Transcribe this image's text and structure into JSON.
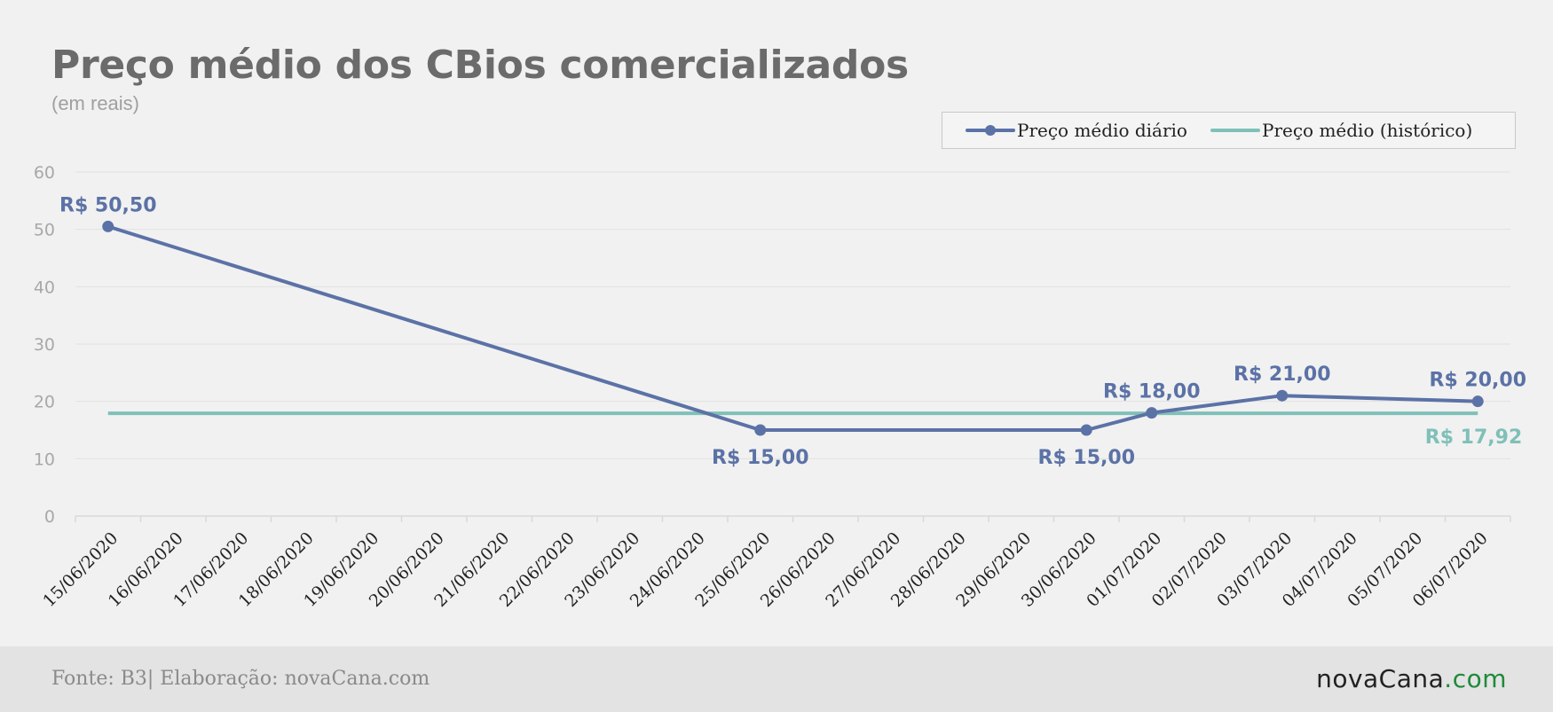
{
  "header": {
    "title": "Preço médio dos CBios comercializados",
    "subtitle": "(em reais)"
  },
  "legend": {
    "items": [
      {
        "label": "Preço médio diário",
        "color": "#5b72a6",
        "marker": "circle-line"
      },
      {
        "label": "Preço médio (histórico)",
        "color": "#7fc0b8",
        "marker": "line"
      }
    ]
  },
  "colors": {
    "daily": "#5b72a6",
    "historic": "#7fc0b8",
    "background": "#f1f1f1",
    "grid": "#e1e1e1",
    "tick_text": "#a8a8a8",
    "axis_label_text": "#222222",
    "logo_accent": "#1e8a3a"
  },
  "chart_data": {
    "type": "line",
    "title": "Preço médio dos CBios comercializados",
    "subtitle": "(em reais)",
    "xlabel": "",
    "ylabel": "",
    "ylim": [
      0,
      60
    ],
    "yticks": [
      0,
      10,
      20,
      30,
      40,
      50,
      60
    ],
    "grid": true,
    "legend_position": "top-right",
    "categories": [
      "15/06/2020",
      "16/06/2020",
      "17/06/2020",
      "18/06/2020",
      "19/06/2020",
      "20/06/2020",
      "21/06/2020",
      "22/06/2020",
      "23/06/2020",
      "24/06/2020",
      "25/06/2020",
      "26/06/2020",
      "27/06/2020",
      "28/06/2020",
      "29/06/2020",
      "30/06/2020",
      "01/07/2020",
      "02/07/2020",
      "03/07/2020",
      "04/07/2020",
      "05/07/2020",
      "06/07/2020"
    ],
    "series": [
      {
        "name": "Preço médio diário",
        "color": "#5b72a6",
        "points": [
          {
            "x": "15/06/2020",
            "y": 50.5,
            "label": "R$ 50,50",
            "label_position": "above"
          },
          {
            "x": "25/06/2020",
            "y": 15.0,
            "label": "R$ 15,00",
            "label_position": "below"
          },
          {
            "x": "30/06/2020",
            "y": 15.0,
            "label": "R$ 15,00",
            "label_position": "below"
          },
          {
            "x": "01/07/2020",
            "y": 18.0,
            "label": "R$ 18,00",
            "label_position": "above"
          },
          {
            "x": "03/07/2020",
            "y": 21.0,
            "label": "R$ 21,00",
            "label_position": "above"
          },
          {
            "x": "06/07/2020",
            "y": 20.0,
            "label": "R$ 20,00",
            "label_position": "above"
          }
        ]
      },
      {
        "name": "Preço médio (histórico)",
        "color": "#7fc0b8",
        "constant": true,
        "value": 17.92,
        "from": "15/06/2020",
        "to": "06/07/2020",
        "end_label": "R$ 17,92"
      }
    ]
  },
  "footer": {
    "source": "Fonte: B3| Elaboração: novaCana.com",
    "logo_main": "novaCana",
    "logo_suffix": ".com"
  }
}
